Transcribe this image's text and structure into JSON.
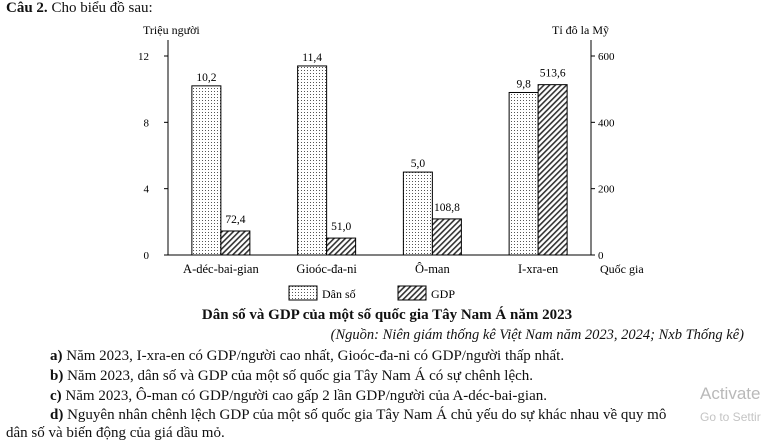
{
  "question": {
    "number": "Câu 2.",
    "text": "Cho biểu đồ sau:"
  },
  "chart_data": {
    "type": "bar",
    "title": "Dân số và GDP của một số quốc gia Tây Nam Á năm 2023",
    "source": "(Nguồn: Niên giám thống kê Việt Nam năm 2023, 2024; Nxb Thống kê)",
    "categories": [
      "A-déc-bai-gian",
      "Gioóc-đa-ni",
      "Ô-man",
      "I-xra-en"
    ],
    "xlabel": "Quốc gia",
    "y_left": {
      "label": "Triệu người",
      "ticks": [
        "0",
        "4",
        "8",
        "12"
      ],
      "range": [
        0,
        12
      ]
    },
    "y_right": {
      "label": "Tỉ đô la Mỹ",
      "ticks": [
        "0",
        "200",
        "400",
        "600"
      ],
      "range": [
        0,
        600
      ]
    },
    "series": [
      {
        "name": "Dân số",
        "axis": "left",
        "pattern": "dots",
        "values": [
          10.2,
          11.4,
          5.0,
          9.8
        ],
        "labels": [
          "10,2",
          "11,4",
          "5,0",
          "9,8"
        ]
      },
      {
        "name": "GDP",
        "axis": "right",
        "pattern": "hatch",
        "values": [
          72.4,
          51.0,
          108.8,
          513.6
        ],
        "labels": [
          "72,4",
          "51,0",
          "108,8",
          "513,6"
        ]
      }
    ],
    "legend": "bottom"
  },
  "statements": [
    {
      "letter": "a)",
      "text": "Năm 2023, I-xra-en có GDP/người cao nhất, Gioóc-đa-ni có GDP/người thấp nhất."
    },
    {
      "letter": "b)",
      "text": "Năm 2023, dân số và GDP của một số quốc gia Tây Nam Á có sự chênh lệch."
    },
    {
      "letter": "c)",
      "text": "Năm 2023, Ô-man có GDP/người cao gấp 2 lần GDP/người của A-déc-bai-gian."
    },
    {
      "letter": "d)",
      "text": "Nguyên nhân chênh lệch GDP của một số quốc gia Tây Nam Á chủ yếu do sự khác nhau về quy mô",
      "continuation": "dân số và biến động của giá dầu mỏ."
    }
  ],
  "watermark": {
    "line1": "Activate",
    "line2": "Go to Settir"
  }
}
